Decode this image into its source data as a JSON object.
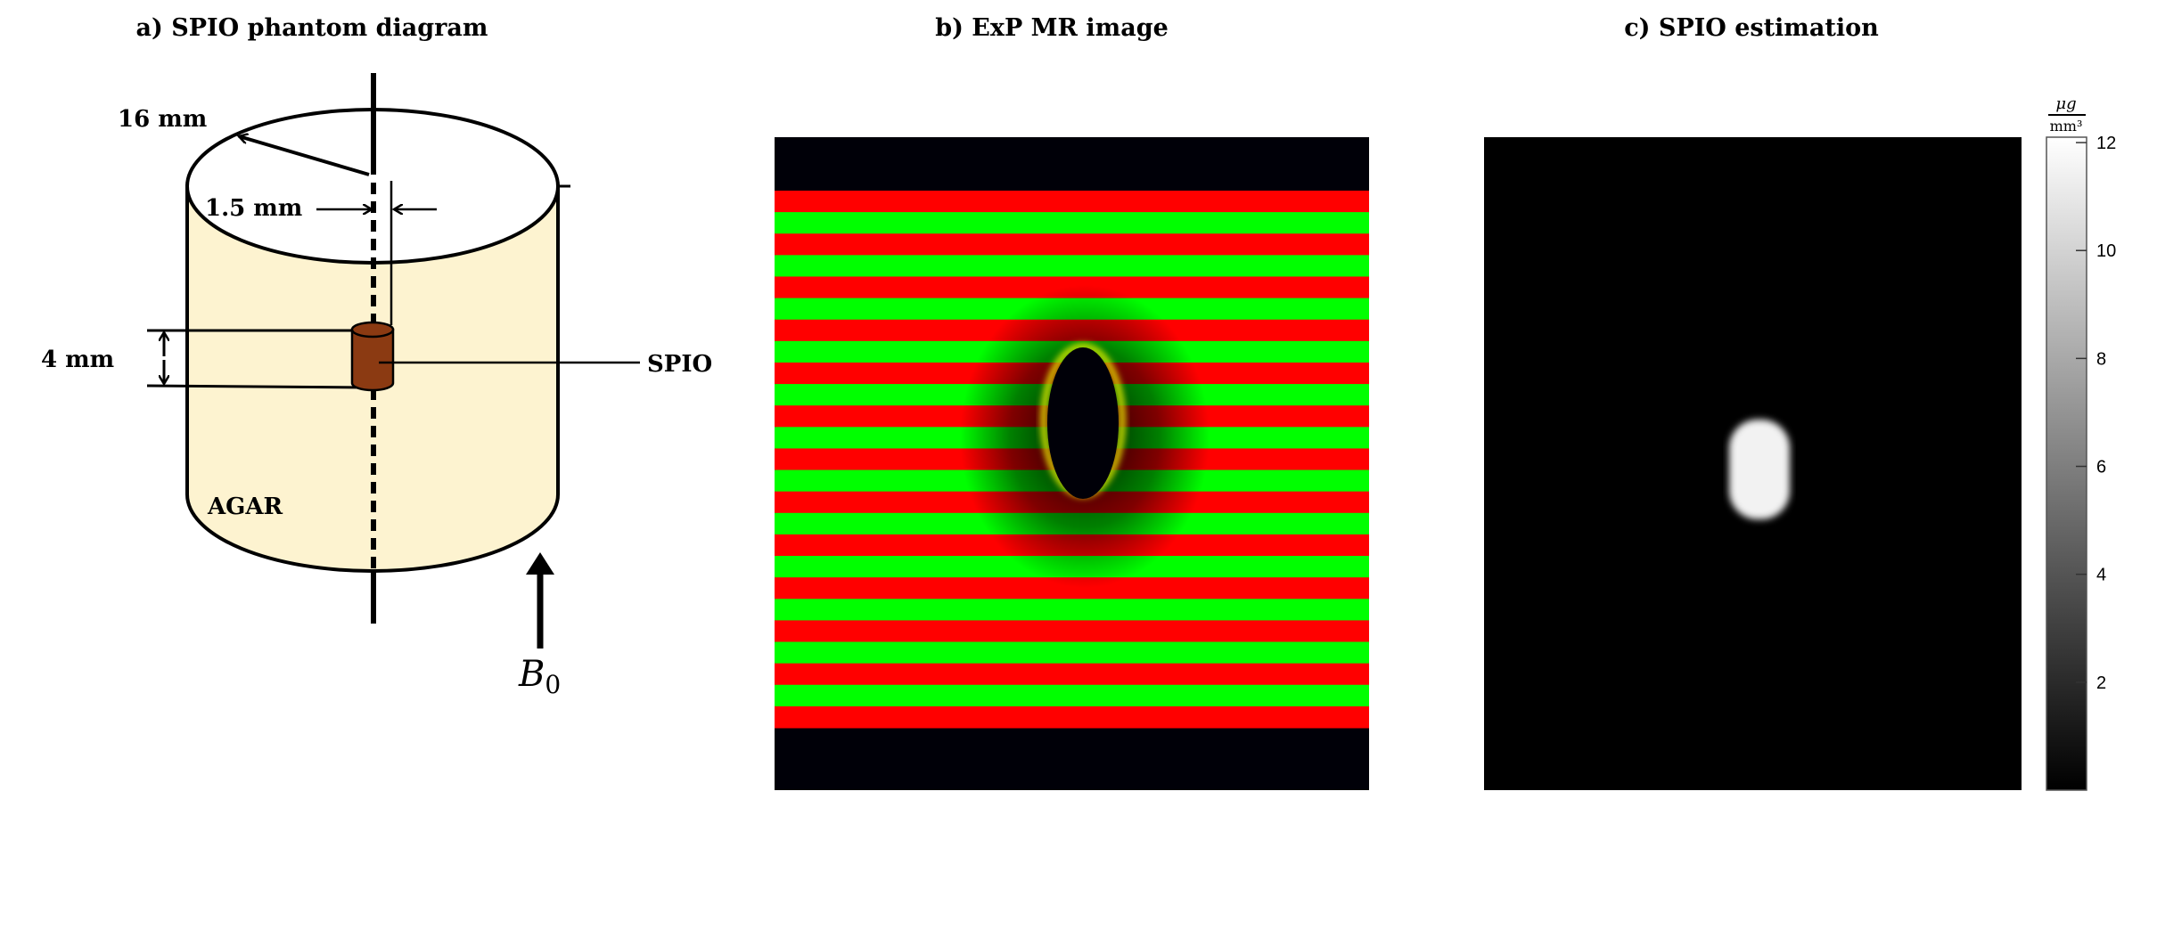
{
  "panels": {
    "a": {
      "title": "a) SPIO phantom diagram",
      "labels": {
        "radius": "16 mm",
        "tube_width": "1.5 mm",
        "spio_height": "4 mm",
        "spio": "SPIO",
        "agar": "AGAR",
        "field": "B",
        "field_subscript": "0"
      },
      "colors": {
        "agar": "#fdf3d0",
        "spio": "#8b3a12"
      }
    },
    "b": {
      "title": "b) ExP MR image",
      "colors": {
        "stripe_a": "#ff0000",
        "stripe_b": "#00ff00",
        "background": "#000008",
        "rim": "#ffff00"
      }
    },
    "c": {
      "title": "c) SPIO estimation",
      "colorbar": {
        "unit_numerator": "μg",
        "unit_denominator": "mm³",
        "ticks": [
          "2",
          "4",
          "6",
          "8",
          "10",
          "12"
        ],
        "range": [
          0,
          12.1
        ],
        "colormap": "gray"
      }
    }
  }
}
